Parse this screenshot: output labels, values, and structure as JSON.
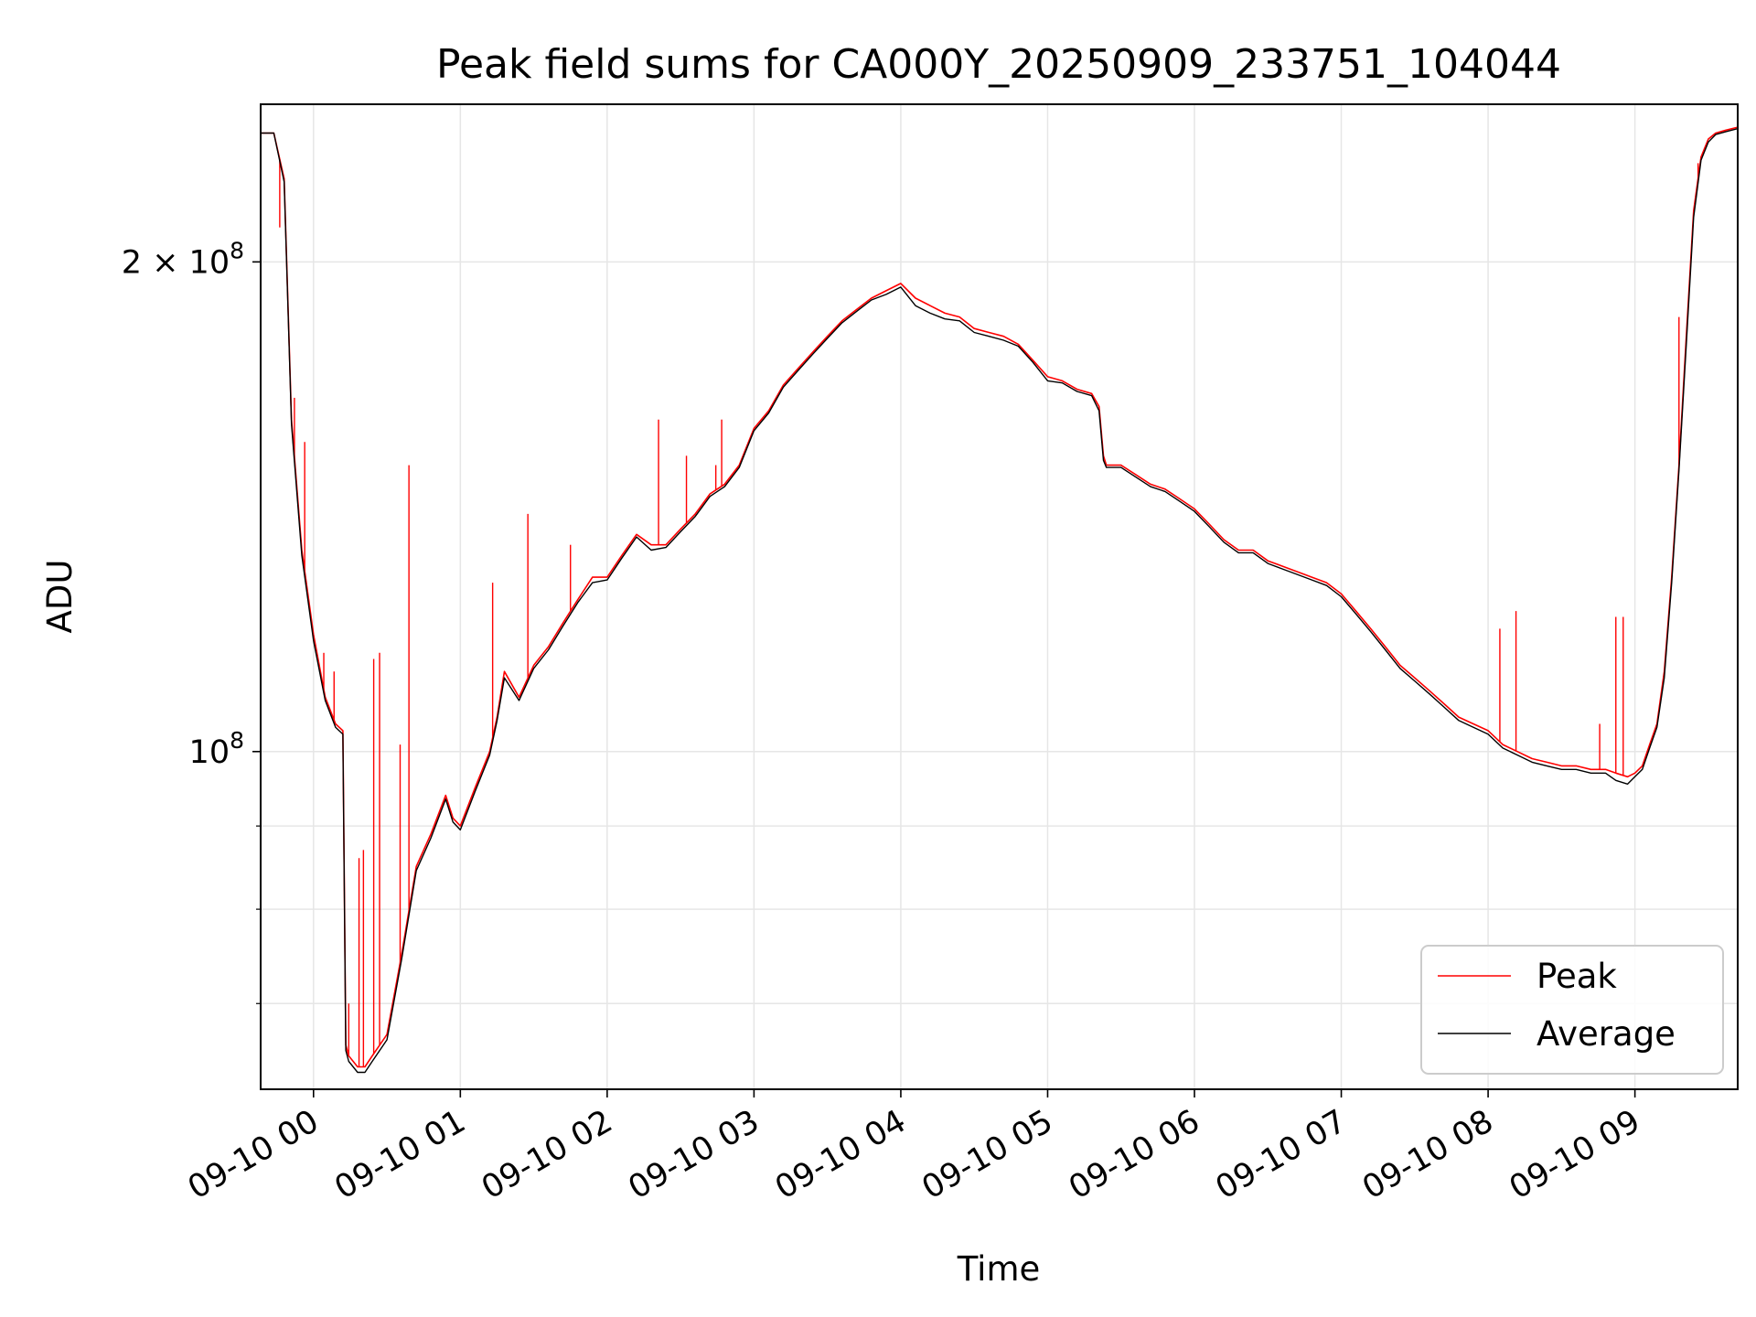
{
  "chart_data": {
    "type": "line",
    "title": "Peak field sums for CA000Y_20250909_233751_104044",
    "xlabel": "Time",
    "ylabel": "ADU",
    "x_unit": "hours (local time, 2025-09-09 23:00 = -1)",
    "xlim": [
      "2025-09-09 23:38",
      "2025-09-10 09:42"
    ],
    "yscale": "log",
    "ylim": [
      62000000,
      250000000
    ],
    "grid": true,
    "legend_location": "lower right",
    "x_tick_labels": [
      "09-10 00",
      "09-10 01",
      "09-10 02",
      "09-10 03",
      "09-10 04",
      "09-10 05",
      "09-10 06",
      "09-10 07",
      "09-10 08",
      "09-10 09"
    ],
    "y_tick_labels": [
      {
        "value": 200000000,
        "base": "2 × 10",
        "exp": "8"
      },
      {
        "value": 100000000,
        "base": "10",
        "exp": "8"
      }
    ],
    "series": [
      {
        "name": "Peak",
        "color": "#ff0000",
        "x": [
          -0.36,
          -0.27,
          -0.2,
          -0.15,
          -0.08,
          0.0,
          0.08,
          0.15,
          0.2,
          0.22,
          0.24,
          0.3,
          0.35,
          0.4,
          0.5,
          0.6,
          0.7,
          0.8,
          0.9,
          0.95,
          1.0,
          1.1,
          1.2,
          1.25,
          1.3,
          1.4,
          1.5,
          1.6,
          1.7,
          1.8,
          1.9,
          2.0,
          2.1,
          2.2,
          2.3,
          2.4,
          2.5,
          2.6,
          2.7,
          2.8,
          2.9,
          3.0,
          3.1,
          3.2,
          3.3,
          3.4,
          3.5,
          3.6,
          3.7,
          3.8,
          3.9,
          4.0,
          4.1,
          4.2,
          4.3,
          4.4,
          4.5,
          4.6,
          4.7,
          4.8,
          4.9,
          5.0,
          5.1,
          5.2,
          5.3,
          5.35,
          5.38,
          5.4,
          5.5,
          5.6,
          5.7,
          5.8,
          5.9,
          6.0,
          6.1,
          6.2,
          6.3,
          6.4,
          6.5,
          6.6,
          6.7,
          6.8,
          6.9,
          7.0,
          7.1,
          7.2,
          7.3,
          7.4,
          7.5,
          7.6,
          7.7,
          7.8,
          7.9,
          8.0,
          8.1,
          8.2,
          8.3,
          8.4,
          8.5,
          8.6,
          8.7,
          8.8,
          8.87,
          8.95,
          9.0,
          9.05,
          9.1,
          9.15,
          9.2,
          9.25,
          9.3,
          9.35,
          9.4,
          9.45,
          9.5,
          9.55,
          9.62,
          9.7
        ],
        "y": [
          240000000,
          240000000,
          225000000,
          160000000,
          133000000,
          118000000,
          108000000,
          104000000,
          103000000,
          66000000,
          65000000,
          64000000,
          64000000,
          65000000,
          67000000,
          75000000,
          85000000,
          89000000,
          94000000,
          91000000,
          90000000,
          95000000,
          100000000,
          105000000,
          112000000,
          108000000,
          113000000,
          116000000,
          120000000,
          124000000,
          128000000,
          128000000,
          132000000,
          136000000,
          134000000,
          134000000,
          137000000,
          140000000,
          144000000,
          146000000,
          150000000,
          158000000,
          162000000,
          168000000,
          172000000,
          176000000,
          180000000,
          184000000,
          187000000,
          190000000,
          192000000,
          194000000,
          190000000,
          188000000,
          186000000,
          185000000,
          182000000,
          181000000,
          180000000,
          178000000,
          174000000,
          170000000,
          169000000,
          167000000,
          166000000,
          163000000,
          152000000,
          150000000,
          150000000,
          148000000,
          146000000,
          145000000,
          143000000,
          141000000,
          138000000,
          135000000,
          133000000,
          133000000,
          131000000,
          130000000,
          129000000,
          128000000,
          127000000,
          125000000,
          122000000,
          119000000,
          116000000,
          113000000,
          111000000,
          109000000,
          107000000,
          105000000,
          104000000,
          103000000,
          101000000,
          100000000,
          99000000,
          98500000,
          98000000,
          98000000,
          97500000,
          97500000,
          97000000,
          96500000,
          97000000,
          98000000,
          101000000,
          104000000,
          112000000,
          128000000,
          150000000,
          180000000,
          215000000,
          232000000,
          238000000,
          240000000,
          241000000,
          242000000
        ]
      },
      {
        "name": "Average",
        "color": "#000000",
        "x": [
          -0.36,
          -0.27,
          -0.2,
          -0.15,
          -0.08,
          0.0,
          0.08,
          0.15,
          0.2,
          0.22,
          0.24,
          0.3,
          0.35,
          0.4,
          0.5,
          0.6,
          0.7,
          0.8,
          0.9,
          0.95,
          1.0,
          1.1,
          1.2,
          1.25,
          1.3,
          1.4,
          1.5,
          1.6,
          1.7,
          1.8,
          1.9,
          2.0,
          2.1,
          2.2,
          2.3,
          2.4,
          2.5,
          2.6,
          2.7,
          2.8,
          2.9,
          3.0,
          3.1,
          3.2,
          3.3,
          3.4,
          3.5,
          3.6,
          3.7,
          3.8,
          3.9,
          4.0,
          4.1,
          4.2,
          4.3,
          4.4,
          4.5,
          4.6,
          4.7,
          4.8,
          4.9,
          5.0,
          5.1,
          5.2,
          5.3,
          5.35,
          5.38,
          5.4,
          5.5,
          5.6,
          5.7,
          5.8,
          5.9,
          6.0,
          6.1,
          6.2,
          6.3,
          6.4,
          6.5,
          6.6,
          6.7,
          6.8,
          6.9,
          7.0,
          7.1,
          7.2,
          7.3,
          7.4,
          7.5,
          7.6,
          7.7,
          7.8,
          7.9,
          8.0,
          8.1,
          8.2,
          8.3,
          8.4,
          8.5,
          8.6,
          8.7,
          8.8,
          8.87,
          8.95,
          9.0,
          9.05,
          9.1,
          9.15,
          9.2,
          9.25,
          9.3,
          9.35,
          9.4,
          9.45,
          9.5,
          9.55,
          9.62,
          9.7
        ],
        "y": [
          240000000,
          240000000,
          224000000,
          159000000,
          132000000,
          117000000,
          107500000,
          103500000,
          102500000,
          65500000,
          64500000,
          63500000,
          63500000,
          64500000,
          66500000,
          74500000,
          84500000,
          88500000,
          93500000,
          90500000,
          89500000,
          94500000,
          99500000,
          104500000,
          111000000,
          107500000,
          112500000,
          115500000,
          119500000,
          123500000,
          127000000,
          127500000,
          131500000,
          135500000,
          133000000,
          133500000,
          136500000,
          139500000,
          143500000,
          145500000,
          149500000,
          157500000,
          161500000,
          167500000,
          171500000,
          175500000,
          179500000,
          183500000,
          186500000,
          189500000,
          191000000,
          193000000,
          188000000,
          186000000,
          184500000,
          184000000,
          181000000,
          180000000,
          179000000,
          177500000,
          173500000,
          169000000,
          168500000,
          166500000,
          165500000,
          162000000,
          151000000,
          149500000,
          149500000,
          147500000,
          145500000,
          144500000,
          142500000,
          140500000,
          137500000,
          134500000,
          132500000,
          132500000,
          130500000,
          129500000,
          128500000,
          127500000,
          126500000,
          124500000,
          121500000,
          118500000,
          115500000,
          112500000,
          110500000,
          108500000,
          106500000,
          104500000,
          103500000,
          102500000,
          100500000,
          99500000,
          98500000,
          98000000,
          97500000,
          97500000,
          97000000,
          97000000,
          96000000,
          95500000,
          96500000,
          97500000,
          100500000,
          103500000,
          111000000,
          127000000,
          149000000,
          178000000,
          213000000,
          231000000,
          237000000,
          239500000,
          240500000,
          241500000
        ]
      }
    ],
    "spikes_peak": [
      {
        "x": -0.23,
        "y": 210000000
      },
      {
        "x": -0.13,
        "y": 165000000
      },
      {
        "x": -0.06,
        "y": 155000000
      },
      {
        "x": 0.07,
        "y": 115000000
      },
      {
        "x": 0.14,
        "y": 112000000
      },
      {
        "x": 0.24,
        "y": 70000000
      },
      {
        "x": 0.31,
        "y": 86000000
      },
      {
        "x": 0.34,
        "y": 87000000
      },
      {
        "x": 0.41,
        "y": 114000000
      },
      {
        "x": 0.45,
        "y": 115000000
      },
      {
        "x": 0.59,
        "y": 101000000
      },
      {
        "x": 0.65,
        "y": 150000000
      },
      {
        "x": 1.22,
        "y": 127000000
      },
      {
        "x": 1.46,
        "y": 140000000
      },
      {
        "x": 1.75,
        "y": 134000000
      },
      {
        "x": 2.35,
        "y": 160000000
      },
      {
        "x": 2.54,
        "y": 152000000
      },
      {
        "x": 2.74,
        "y": 150000000
      },
      {
        "x": 2.78,
        "y": 160000000
      },
      {
        "x": 8.08,
        "y": 119000000
      },
      {
        "x": 8.19,
        "y": 122000000
      },
      {
        "x": 8.76,
        "y": 104000000
      },
      {
        "x": 8.87,
        "y": 121000000
      },
      {
        "x": 8.92,
        "y": 121000000
      },
      {
        "x": 9.3,
        "y": 185000000
      },
      {
        "x": 9.43,
        "y": 230000000
      }
    ]
  }
}
